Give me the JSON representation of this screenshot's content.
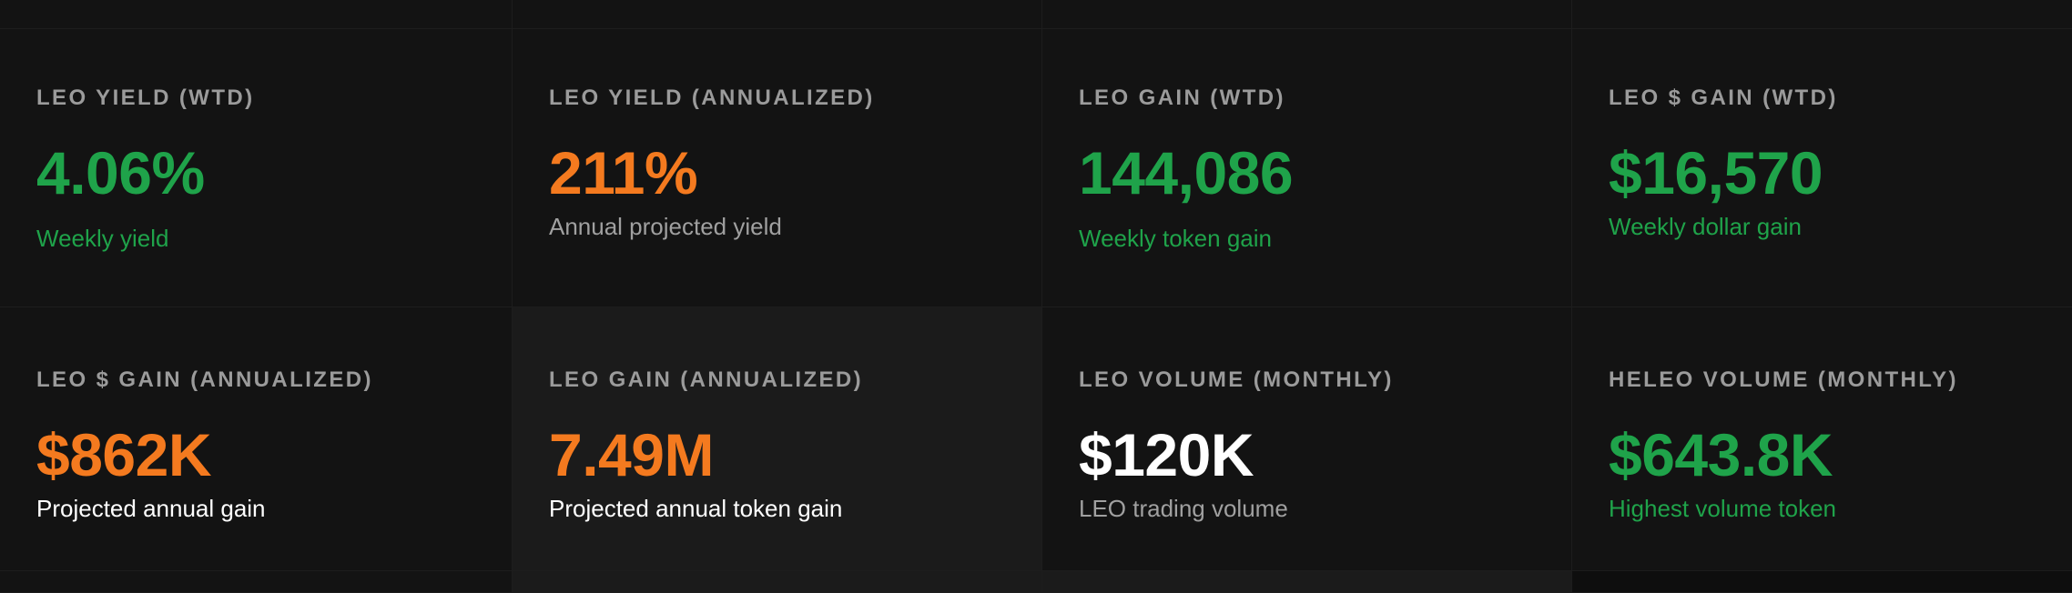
{
  "colors": {
    "background": "#131313",
    "background_alt": "#1b1b1b",
    "label": "#9b9b9b",
    "green": "#1fa34a",
    "orange": "#f47a1f",
    "white": "#ffffff",
    "gray": "#a0a0a0"
  },
  "cards": [
    {
      "label": "LEO YIELD (WTD)",
      "value": "4.06%",
      "value_color": "green",
      "subtitle": "Weekly yield",
      "subtitle_color": "green"
    },
    {
      "label": "LEO YIELD (ANNUALIZED)",
      "value": "211%",
      "value_color": "orange",
      "subtitle": "Annual projected yield",
      "subtitle_color": "gray"
    },
    {
      "label": "LEO GAIN (WTD)",
      "value": "144,086",
      "value_color": "green",
      "subtitle": "Weekly token gain",
      "subtitle_color": "green"
    },
    {
      "label": "LEO $ GAIN (WTD)",
      "value": "$16,570",
      "value_color": "green",
      "subtitle": "Weekly dollar gain",
      "subtitle_color": "green"
    },
    {
      "label": "LEO $ GAIN (ANNUALIZED)",
      "value": "$862K",
      "value_color": "orange",
      "subtitle": "Projected annual gain",
      "subtitle_color": "white"
    },
    {
      "label": "LEO GAIN (ANNUALIZED)",
      "value": "7.49M",
      "value_color": "orange",
      "subtitle": "Projected annual token gain",
      "subtitle_color": "white"
    },
    {
      "label": "LEO VOLUME (MONTHLY)",
      "value": "$120K",
      "value_color": "white",
      "subtitle": "LEO trading volume",
      "subtitle_color": "gray"
    },
    {
      "label": "HELEO VOLUME (MONTHLY)",
      "value": "$643.8K",
      "value_color": "green",
      "subtitle": "Highest volume token",
      "subtitle_color": "green"
    }
  ]
}
